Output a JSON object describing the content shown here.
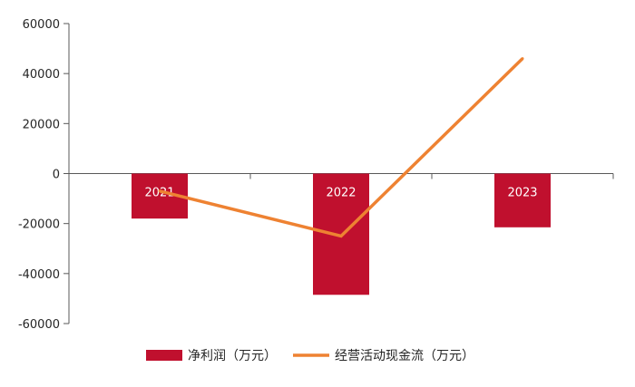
{
  "chart_data": {
    "type": "bar+line",
    "title": "",
    "xlabel": "",
    "ylabel": "",
    "categories": [
      "2021",
      "2022",
      "2023"
    ],
    "ylim": [
      -60000,
      60000
    ],
    "yticks": [
      60000,
      40000,
      20000,
      0,
      -20000,
      -40000,
      -60000
    ],
    "ytick_labels": [
      "60000",
      "40000",
      "20000",
      "0",
      "-20000",
      "-40000",
      "-60000"
    ],
    "grid": false,
    "legend_position": "bottom",
    "series": [
      {
        "name": "净利润（万元）",
        "type": "bar",
        "color": "#c0102e",
        "values": [
          -18000,
          -48500,
          -21500
        ]
      },
      {
        "name": "经营活动现金流（万元）",
        "type": "line",
        "color": "#ee8232",
        "values": [
          -7000,
          -25000,
          46000
        ]
      }
    ]
  }
}
